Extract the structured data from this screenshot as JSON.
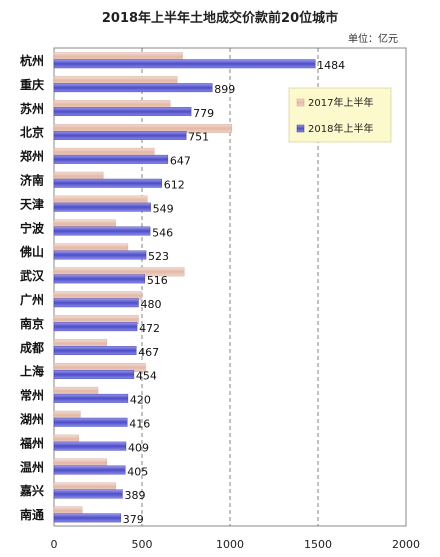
{
  "chart_data": {
    "type": "bar",
    "orientation": "horizontal",
    "title": "2018年上半年土地成交价款前20位城市",
    "unit_label": "单位：亿元",
    "categories": [
      "杭州",
      "重庆",
      "苏州",
      "北京",
      "郑州",
      "济南",
      "天津",
      "宁波",
      "佛山",
      "武汉",
      "广州",
      "南京",
      "成都",
      "上海",
      "常州",
      "湖州",
      "福州",
      "温州",
      "嘉兴",
      "南通"
    ],
    "series": [
      {
        "name": "2017年上半年",
        "color": "#e8c2b4",
        "values": [
          730,
          700,
          660,
          1010,
          570,
          280,
          530,
          350,
          420,
          740,
          500,
          480,
          300,
          520,
          250,
          150,
          140,
          300,
          350,
          160
        ]
      },
      {
        "name": "2018年上半年",
        "color": "#6a6ad8",
        "values": [
          1484,
          899,
          779,
          751,
          647,
          612,
          549,
          546,
          523,
          516,
          480,
          472,
          467,
          454,
          420,
          416,
          409,
          405,
          389,
          379
        ]
      }
    ],
    "data_labels": [
      "1484",
      "899",
      "779",
      "751",
      "647",
      "612",
      "549",
      "546",
      "523",
      "516",
      "480",
      "472",
      "467",
      "454",
      "420",
      "416",
      "409",
      "405",
      "389",
      "379"
    ],
    "xlim": [
      0,
      2000
    ],
    "x_ticks": [
      "0",
      "500",
      "1000",
      "1500",
      "2000"
    ],
    "gridlines": "vertical-dashed",
    "legend_position": "top-right"
  }
}
